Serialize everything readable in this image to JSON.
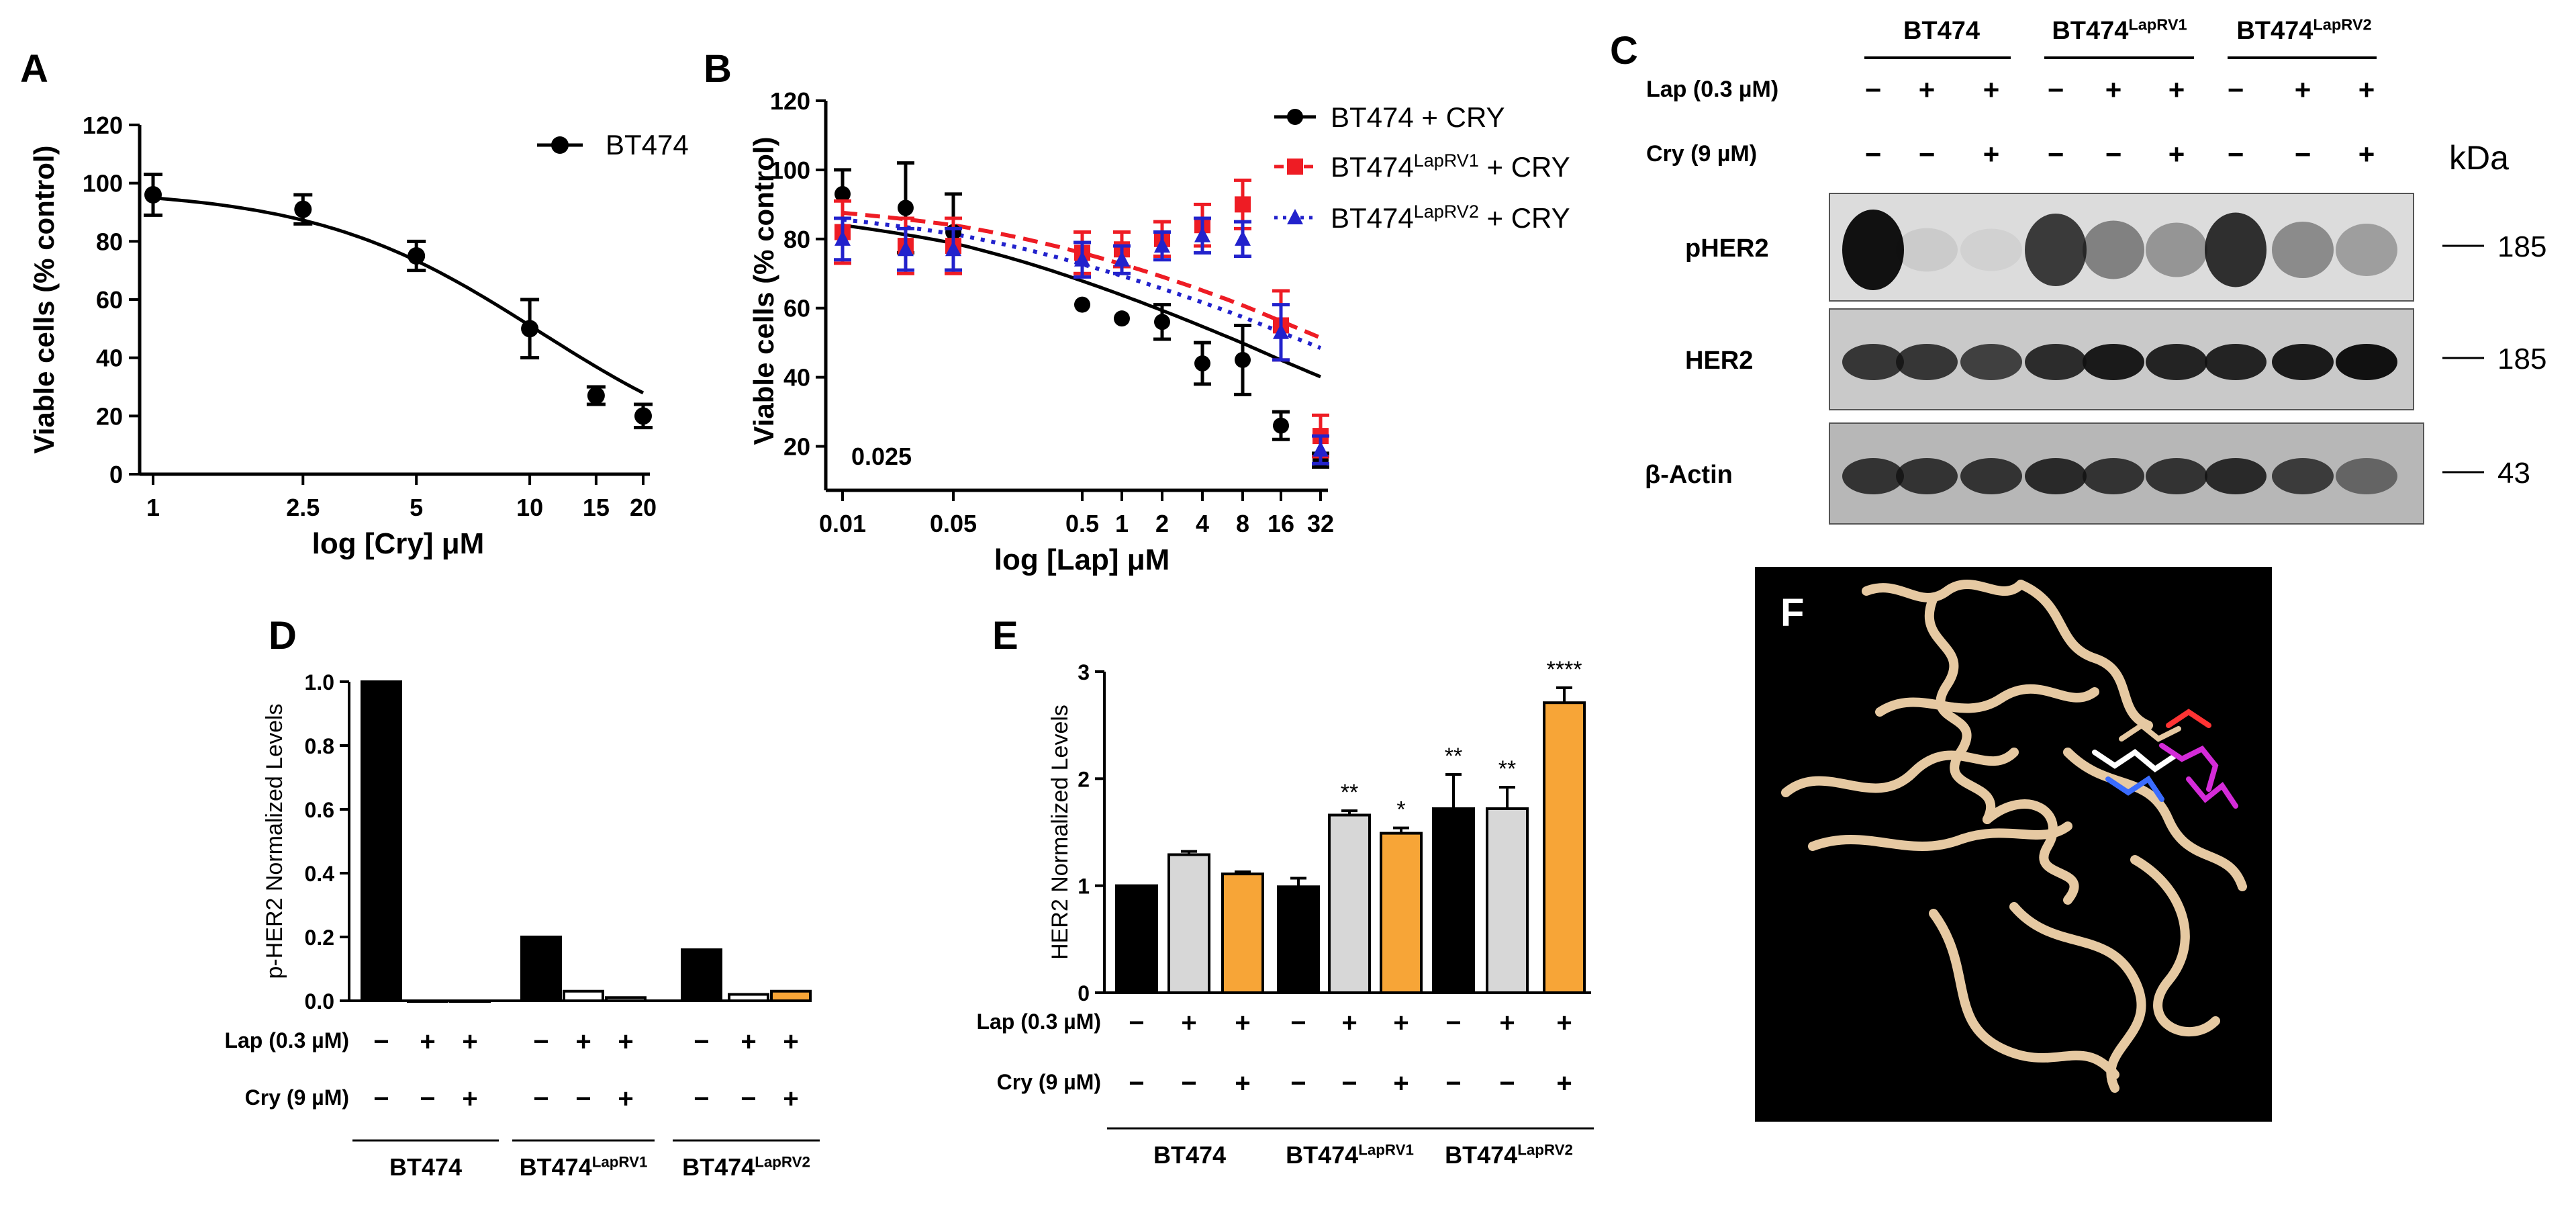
{
  "colors": {
    "black": "#000000",
    "red": "#ee1c24",
    "blue": "#2222cc",
    "gray_bar": "#d7d7d7",
    "orange_bar": "#f7a537",
    "ribbon": "#e6c9a2",
    "magenta": "#d42bd8"
  },
  "panels": {
    "a": {
      "label": "A"
    },
    "b": {
      "label": "B",
      "annotation": "0.025"
    },
    "c": {
      "label": "C",
      "groups": [
        {
          "name": "BT474",
          "sup": ""
        },
        {
          "name": "BT474",
          "sup": "LapRV1"
        },
        {
          "name": "BT474",
          "sup": "LapRV2"
        }
      ],
      "rows": [
        {
          "label": "Lap (0.3 µM)",
          "signs": [
            "−",
            "+",
            "+",
            "−",
            "+",
            "+",
            "−",
            "+",
            "+"
          ]
        },
        {
          "label": "Cry (9 µM)",
          "signs": [
            "−",
            "−",
            "+",
            "−",
            "−",
            "+",
            "−",
            "−",
            "+"
          ]
        }
      ],
      "kda_label": "kDa",
      "blots": [
        {
          "label": "pHER2",
          "kda": "185"
        },
        {
          "label": "HER2",
          "kda": "185"
        },
        {
          "label": "β-Actin",
          "kda": "43"
        }
      ]
    },
    "d": {
      "label": "D",
      "rows": [
        {
          "label": "Lap (0.3 µM)",
          "signs": [
            "−",
            "+",
            "+",
            "−",
            "+",
            "+",
            "−",
            "+",
            "+"
          ]
        },
        {
          "label": "Cry (9 µM)",
          "signs": [
            "−",
            "−",
            "+",
            "−",
            "−",
            "+",
            "−",
            "−",
            "+"
          ]
        }
      ],
      "groups": [
        {
          "name": "BT474",
          "sup": ""
        },
        {
          "name": "BT474",
          "sup": "LapRV1"
        },
        {
          "name": "BT474",
          "sup": "LapRV2"
        }
      ]
    },
    "e": {
      "label": "E",
      "rows": [
        {
          "label": "Lap (0.3 µM)",
          "signs": [
            "−",
            "+",
            "+",
            "−",
            "+",
            "+",
            "−",
            "+",
            "+"
          ]
        },
        {
          "label": "Cry (9 µM)",
          "signs": [
            "−",
            "−",
            "+",
            "−",
            "−",
            "+",
            "−",
            "−",
            "+"
          ]
        }
      ],
      "groups": [
        {
          "name": "BT474",
          "sup": ""
        },
        {
          "name": "BT474",
          "sup": "LapRV1"
        },
        {
          "name": "BT474",
          "sup": "LapRV2"
        }
      ]
    },
    "f": {
      "label": "F"
    }
  },
  "chart_data": [
    {
      "type": "line",
      "panel": "A",
      "xscale": "log",
      "xlabel": "log [Cry] μM",
      "ylabel": "Viable cells (% control)",
      "ylim": [
        0,
        120
      ],
      "xticks": [
        "1",
        "2.5",
        "5",
        "10",
        "15",
        "20"
      ],
      "yticks": [
        "0",
        "20",
        "40",
        "60",
        "80",
        "100",
        "120"
      ],
      "legend": "top-right",
      "series": [
        {
          "name": "BT474",
          "x": [
            1,
            2.5,
            5,
            10,
            15,
            20
          ],
          "y": [
            96,
            91,
            75,
            50,
            27,
            20
          ],
          "err": [
            7,
            5,
            5,
            10,
            3,
            4
          ],
          "fit": {
            "top": 98,
            "bottom": 0,
            "ic50": 10.6,
            "hill": 1.45
          }
        }
      ]
    },
    {
      "type": "line",
      "panel": "B",
      "xscale": "log",
      "xlabel": "log [Lap] μM",
      "ylabel": "Viable cells (% control)",
      "ylim": [
        10,
        120
      ],
      "xticks": [
        "0.01",
        "0.05",
        "0.5",
        "1",
        "2",
        "4",
        "8",
        "16",
        "32"
      ],
      "yticks": [
        "20",
        "40",
        "60",
        "80",
        "100",
        "120"
      ],
      "legend": "top-right",
      "series": [
        {
          "name": "BT474 + CRY",
          "x": [
            0.01,
            0.025,
            0.05,
            0.5,
            1,
            2,
            4,
            8,
            16,
            32
          ],
          "y": [
            93,
            89,
            82,
            61,
            57,
            56,
            44,
            45,
            26,
            16
          ],
          "err": [
            7,
            13,
            11,
            0,
            0,
            5,
            6,
            10,
            4,
            2
          ],
          "fit": {
            "top": 94,
            "bottom": 0,
            "ic50": 12,
            "hill": 0.3
          }
        },
        {
          "name": "BT474",
          "sup": "LapRV1",
          "suffix": " + CRY",
          "x": [
            0.01,
            0.025,
            0.05,
            0.5,
            1,
            2,
            4,
            8,
            16,
            32
          ],
          "y": [
            82,
            78,
            78,
            76,
            77,
            80,
            84,
            90,
            55,
            23
          ],
          "err": [
            9,
            8,
            8,
            6,
            5,
            5,
            6,
            7,
            10,
            6
          ],
          "fit": {
            "top": 94,
            "bottom": 0,
            "ic50": 60,
            "hill": 0.3
          }
        },
        {
          "name": "BT474",
          "sup": "LapRV2",
          "suffix": " + CRY",
          "x": [
            0.01,
            0.025,
            0.05,
            0.5,
            1,
            2,
            4,
            8,
            16,
            32
          ],
          "y": [
            80,
            77,
            77,
            74,
            74,
            78,
            81,
            80,
            53,
            19
          ],
          "err": [
            6,
            6,
            6,
            5,
            4,
            4,
            5,
            5,
            8,
            4
          ],
          "fit": {
            "top": 94,
            "bottom": 0,
            "ic50": 40,
            "hill": 0.28
          }
        }
      ]
    },
    {
      "type": "bar",
      "panel": "D",
      "ylabel": "p-HER2 Normalized Levels",
      "ylim": [
        0,
        1.0
      ],
      "yticks": [
        "0.0",
        "0.2",
        "0.4",
        "0.6",
        "0.8",
        "1.0"
      ],
      "values": [
        1.0,
        0.0,
        0.0,
        0.2,
        0.03,
        0.01,
        0.16,
        0.02,
        0.03
      ],
      "fills": [
        "black",
        "white",
        "white",
        "black",
        "white",
        "white",
        "black",
        "white",
        "orange"
      ]
    },
    {
      "type": "bar",
      "panel": "E",
      "ylabel": "HER2 Normalized Levels",
      "ylim": [
        0,
        3
      ],
      "yticks": [
        "0",
        "1",
        "2",
        "3"
      ],
      "values": [
        1.0,
        1.29,
        1.11,
        0.99,
        1.66,
        1.49,
        1.72,
        1.72,
        2.71
      ],
      "err": [
        0,
        0.03,
        0.02,
        0.08,
        0.04,
        0.05,
        0.32,
        0.2,
        0.14
      ],
      "fills": [
        "black",
        "gray",
        "orange",
        "black",
        "gray",
        "orange",
        "black",
        "gray",
        "orange"
      ],
      "significance": [
        "",
        "",
        "",
        "",
        "**",
        "*",
        "**",
        "**",
        "****"
      ]
    }
  ]
}
